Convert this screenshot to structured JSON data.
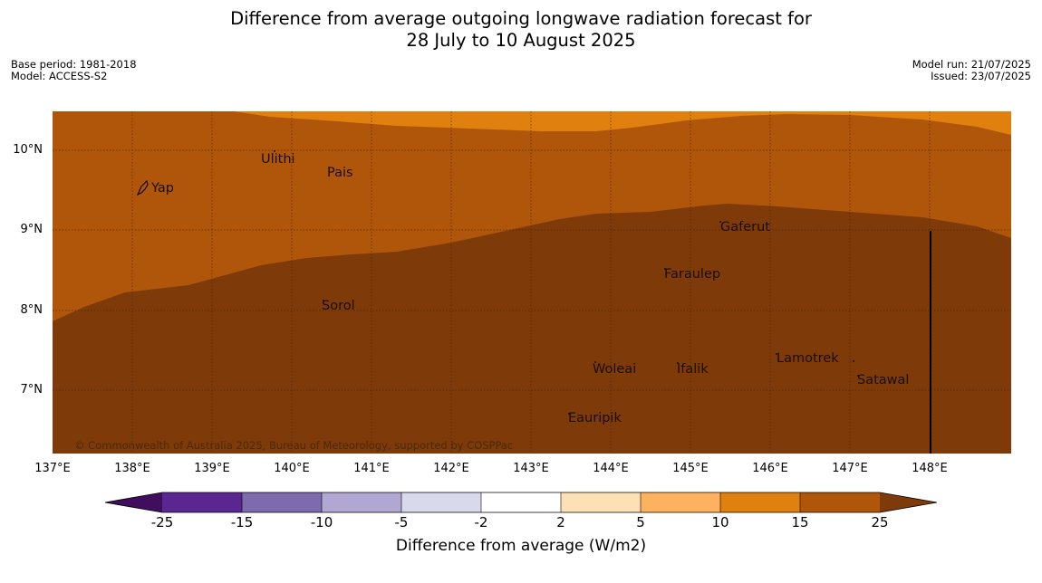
{
  "header": {
    "title_line1": "Difference from average outgoing longwave radiation forecast for",
    "title_line2": "28 July to 10 August 2025",
    "base_period": "Base period: 1981-2018",
    "model": "Model: ACCESS-S2",
    "model_run": "Model run: 21/07/2025",
    "issued": "Issued: 23/07/2025"
  },
  "map": {
    "copyright": "© Commonwealth of Australia 2025, Bureau of Meteorology, supported by COSPPac",
    "latitude_labels": [
      "10°N",
      "9°N",
      "8°N",
      "7°N"
    ],
    "longitude_labels": [
      "137°E",
      "138°E",
      "139°E",
      "140°E",
      "141°E",
      "142°E",
      "143°E",
      "144°E",
      "145°E",
      "146°E",
      "147°E",
      "148°E"
    ],
    "places": [
      "Ulithi",
      "Pais",
      "Yap",
      "Gaferut",
      "Faraulep",
      "Sorol",
      "Woleai",
      "Ifalik",
      "Lamotrek",
      "Satawal",
      "Eauripik"
    ],
    "fill_colors": {
      "band_10_15": "#e0800f",
      "band_15_25": "#b0560a",
      "band_above_25": "#7f3a0a"
    }
  },
  "colorbar": {
    "label": "Difference from average (W/m2)",
    "ticks": [
      "-25",
      "-15",
      "-10",
      "-5",
      "-2",
      "2",
      "5",
      "10",
      "15",
      "25"
    ],
    "colors": [
      "#3f0f5e",
      "#5a2690",
      "#7e6bad",
      "#b1a7d3",
      "#d9d9ec",
      "#ffffff",
      "#fee0b6",
      "#fdb25f",
      "#e0800f",
      "#b0560a",
      "#7f3a0a"
    ]
  }
}
